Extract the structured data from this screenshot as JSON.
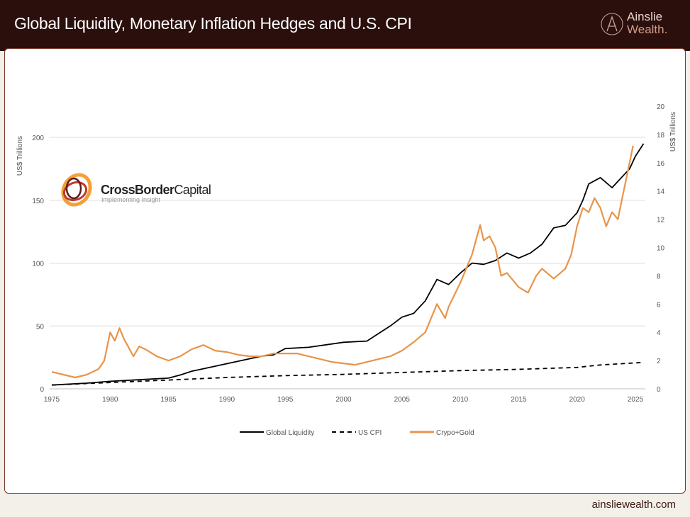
{
  "header": {
    "title": "Global Liquidity, Monetary Inflation Hedges and U.S. CPI",
    "brand_line1": "Ainslie",
    "brand_line2": "Wealth."
  },
  "footer": {
    "url": "ainsliewealth.com"
  },
  "logo": {
    "name_bold": "CrossBorder",
    "name_regular": "Capital",
    "tagline": "Implementing Insight"
  },
  "chart_data": {
    "type": "line",
    "title": "",
    "xlim": [
      1975,
      2026
    ],
    "x_ticks": [
      1975,
      1980,
      1985,
      1990,
      1995,
      2000,
      2005,
      2010,
      2015,
      2020,
      2025
    ],
    "y_left": {
      "label": "US$ Trillions",
      "lim": [
        0,
        200
      ],
      "ticks": [
        0,
        50,
        100,
        150,
        200
      ]
    },
    "y_right": {
      "label": "US$ Trillions",
      "lim": [
        0,
        20
      ],
      "ticks": [
        0,
        2,
        4,
        6,
        8,
        10,
        12,
        14,
        16,
        18,
        20
      ]
    },
    "grid": true,
    "legend": "bottom",
    "series": [
      {
        "name": "Global Liquidity",
        "axis": "left",
        "color": "#000000",
        "style": "solid",
        "x": [
          1975,
          1978,
          1980,
          1983,
          1985,
          1986,
          1987,
          1988,
          1990,
          1992,
          1993,
          1994,
          1995,
          1997,
          2000,
          2002,
          2003,
          2004,
          2005,
          2006,
          2007,
          2008,
          2009,
          2010,
          2011,
          2012,
          2013,
          2014,
          2015,
          2016,
          2017,
          2018,
          2019,
          2020,
          2020.5,
          2021,
          2022,
          2023,
          2024,
          2024.5,
          2025,
          2025.7
        ],
        "y": [
          3,
          4.5,
          6,
          7.5,
          8.5,
          11,
          14,
          16,
          20,
          24,
          26,
          27,
          32,
          33,
          37,
          38,
          44,
          50,
          57,
          60,
          70,
          87,
          83,
          92,
          100,
          99,
          102,
          108,
          104,
          108,
          115,
          128,
          130,
          140,
          150,
          163,
          168,
          160,
          170,
          175,
          185,
          195
        ]
      },
      {
        "name": "US CPI",
        "axis": "left",
        "color": "#000000",
        "style": "dashed",
        "x": [
          1975,
          1980,
          1985,
          1990,
          1995,
          2000,
          2005,
          2010,
          2015,
          2020,
          2022,
          2025.7
        ],
        "y": [
          3,
          5,
          7,
          9,
          10.5,
          11.5,
          13,
          14.5,
          15.5,
          17,
          19,
          21
        ]
      },
      {
        "name": "Crypo+Gold",
        "axis": "right",
        "color": "#e8944a",
        "style": "solid",
        "x": [
          1975,
          1976,
          1977,
          1978,
          1979,
          1979.5,
          1980,
          1980.4,
          1980.8,
          1981.2,
          1982,
          1982.5,
          1983,
          1984,
          1985,
          1986,
          1987,
          1988,
          1989,
          1990,
          1991,
          1992,
          1993,
          1994,
          1995,
          1996,
          1997,
          1998,
          1999,
          2000,
          2001,
          2002,
          2003,
          2004,
          2005,
          2006,
          2007,
          2008,
          2008.7,
          2009,
          2010,
          2011,
          2011.7,
          2012,
          2012.5,
          2013,
          2013.5,
          2014,
          2015,
          2015.8,
          2016.5,
          2017,
          2018,
          2019,
          2019.5,
          2020,
          2020.5,
          2021,
          2021.5,
          2022,
          2022.5,
          2023,
          2023.5,
          2024,
          2024.5,
          2024.8
        ],
        "y": [
          1.2,
          1.0,
          0.8,
          1.0,
          1.4,
          2.0,
          4.0,
          3.4,
          4.3,
          3.5,
          2.3,
          3.0,
          2.8,
          2.3,
          2.0,
          2.3,
          2.8,
          3.1,
          2.7,
          2.6,
          2.4,
          2.3,
          2.3,
          2.5,
          2.5,
          2.5,
          2.3,
          2.1,
          1.9,
          1.8,
          1.7,
          1.9,
          2.1,
          2.3,
          2.7,
          3.3,
          4.0,
          6.0,
          5.0,
          5.8,
          7.5,
          9.5,
          11.6,
          10.5,
          10.8,
          10.0,
          8.0,
          8.2,
          7.2,
          6.8,
          8.0,
          8.5,
          7.8,
          8.5,
          9.5,
          11.5,
          12.8,
          12.5,
          13.5,
          12.8,
          11.5,
          12.5,
          12.0,
          14.0,
          16.0,
          17.2
        ]
      }
    ]
  }
}
